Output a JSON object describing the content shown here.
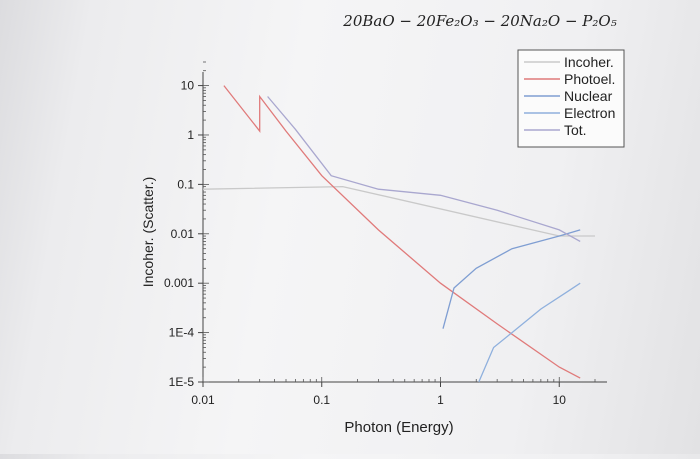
{
  "chart_data": {
    "type": "line",
    "title": "20BaO − 20Fe₂O₃ − 20Na₂O − P₂O₅",
    "xlabel": "Photon (Energy)",
    "ylabel": "Incoher. (Scatter.)",
    "x_scale": "log",
    "y_scale": "log",
    "xlim": [
      0.01,
      20
    ],
    "ylim": [
      1e-05,
      30
    ],
    "x_ticks": [
      {
        "value": 0.01,
        "label": "0.01"
      },
      {
        "value": 0.1,
        "label": "0.1"
      },
      {
        "value": 1,
        "label": "1"
      },
      {
        "value": 10,
        "label": "10"
      }
    ],
    "y_ticks": [
      {
        "value": 10,
        "label": "10"
      },
      {
        "value": 1,
        "label": "1"
      },
      {
        "value": 0.1,
        "label": "0.1"
      },
      {
        "value": 0.01,
        "label": "0.01"
      },
      {
        "value": 0.001,
        "label": "0.001"
      },
      {
        "value": 0.0001,
        "label": "1E-4"
      },
      {
        "value": 1e-05,
        "label": "1E-5"
      }
    ],
    "legend_position": "top-right",
    "series": [
      {
        "name": "Incoher.",
        "color": "#c9c9c9",
        "x": [
          0.01,
          0.15,
          10,
          20
        ],
        "y": [
          0.08,
          0.09,
          0.009,
          0.009
        ]
      },
      {
        "name": "Photoel.",
        "color": "#e07a7a",
        "x": [
          0.015,
          0.03,
          0.03,
          0.05,
          0.1,
          0.3,
          1,
          3,
          10,
          15
        ],
        "y": [
          10,
          1.2,
          6,
          1.2,
          0.15,
          0.012,
          0.001,
          0.00015,
          2e-05,
          1.2e-05
        ]
      },
      {
        "name": "Nuclear",
        "color": "#7f9ed2",
        "x": [
          1.05,
          1.3,
          2,
          4,
          10,
          15
        ],
        "y": [
          0.00012,
          0.0008,
          0.002,
          0.005,
          0.009,
          0.012
        ]
      },
      {
        "name": "Electron",
        "color": "#8fb0dd",
        "x": [
          2.1,
          2.8,
          4,
          7,
          12,
          15
        ],
        "y": [
          1e-05,
          5e-05,
          0.0001,
          0.0003,
          0.0007,
          0.001
        ]
      },
      {
        "name": "Tot.",
        "color": "#a9a7cf",
        "x": [
          0.035,
          0.06,
          0.12,
          0.3,
          1,
          3,
          10,
          15
        ],
        "y": [
          6,
          1.3,
          0.15,
          0.08,
          0.06,
          0.03,
          0.012,
          0.007
        ]
      }
    ]
  }
}
